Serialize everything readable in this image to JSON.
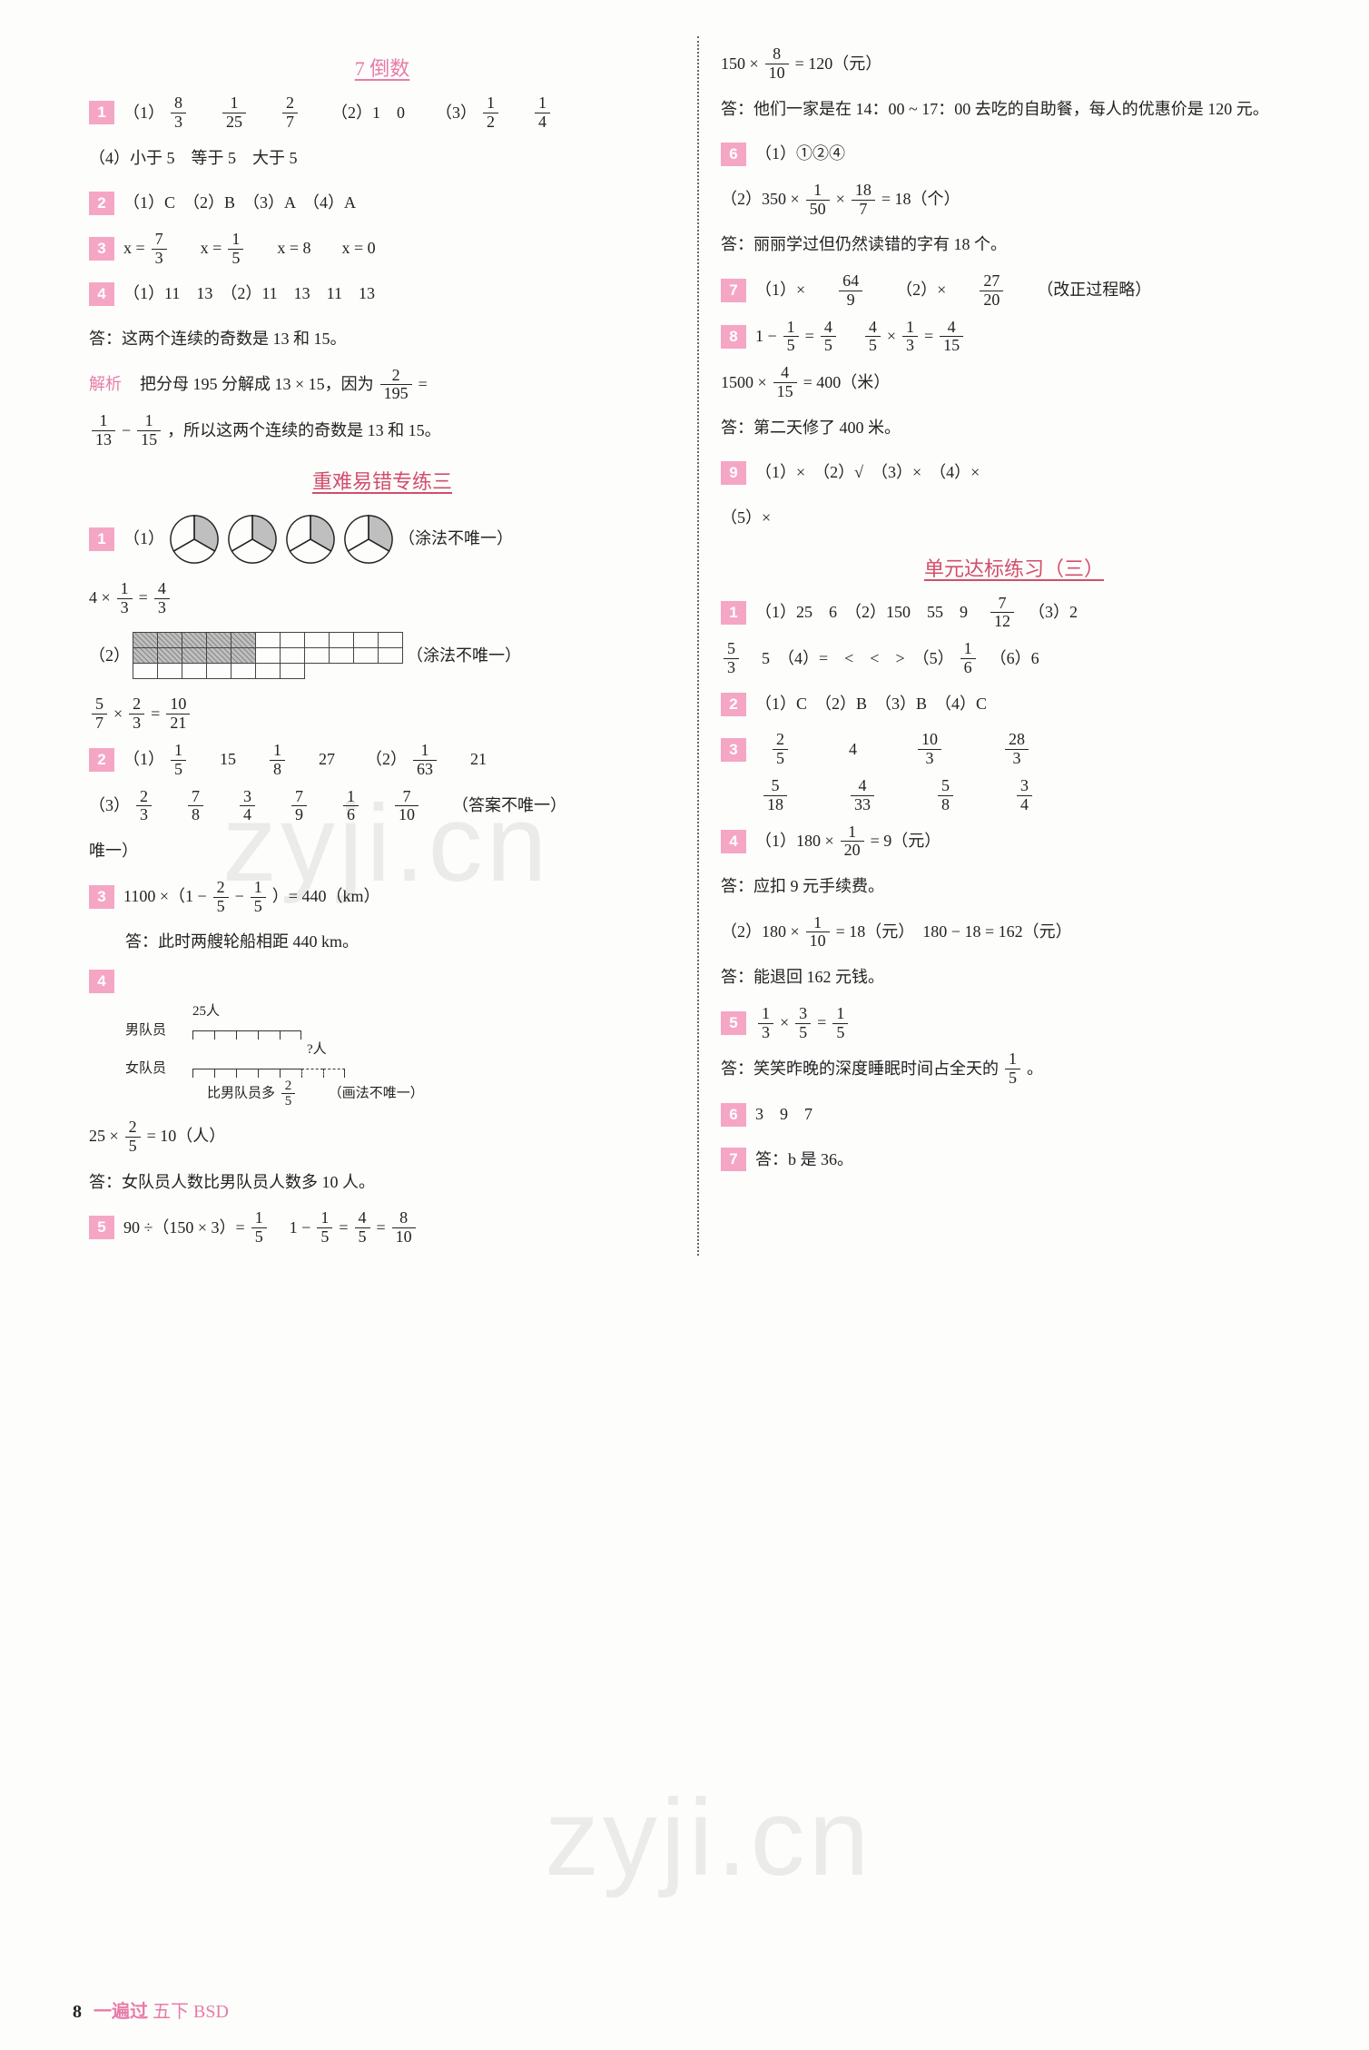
{
  "page": {
    "number": "8",
    "brand": "一遍过",
    "sub": "五下 BSD"
  },
  "watermark": "zyji.cn",
  "left": {
    "sec1_title": "7  倒数",
    "q1": {
      "p1_prefix": "（1）",
      "frac1": {
        "n": "8",
        "d": "3"
      },
      "frac2": {
        "n": "1",
        "d": "25"
      },
      "frac3": {
        "n": "2",
        "d": "7"
      },
      "p2": "（2）1　0",
      "p3_prefix": "（3）",
      "frac4": {
        "n": "1",
        "d": "2"
      },
      "frac5": {
        "n": "1",
        "d": "4"
      },
      "p4": "（4）小于 5　等于 5　大于 5"
    },
    "q2": "（1）C　（2）B　（3）A　（4）A",
    "q3": {
      "eq1_lhs": "x =",
      "f1": {
        "n": "7",
        "d": "3"
      },
      "eq2_lhs": "x =",
      "f2": {
        "n": "1",
        "d": "5"
      },
      "eq3": "x = 8",
      "eq4": "x = 0"
    },
    "q4_l1": "（1）11　13　（2）11　13　11　13",
    "q4_ans": "答：这两个连续的奇数是 13 和 15。",
    "jiexi_label": "解析",
    "jiexi_t1": "把分母 195 分解成 13 × 15，因为",
    "jiexi_f1": {
      "n": "2",
      "d": "195"
    },
    "jiexi_eq": " = ",
    "jiexi_f2": {
      "n": "1",
      "d": "13"
    },
    "jiexi_minus": " − ",
    "jiexi_f3": {
      "n": "1",
      "d": "15"
    },
    "jiexi_t2": "，所以这两个连续的奇数是 13 和 15。",
    "sec2_title": "重难易错专练三",
    "z1_note": "（涂法不唯一）",
    "z1_eq_a": "4 ×",
    "z1_f1": {
      "n": "1",
      "d": "3"
    },
    "z1_eq_mid": " = ",
    "z1_f2": {
      "n": "4",
      "d": "3"
    },
    "z1_p2_label": "（2）",
    "z1_eq2_f1": {
      "n": "5",
      "d": "7"
    },
    "z1_times": " × ",
    "z1_eq2_f2": {
      "n": "2",
      "d": "3"
    },
    "z1_eq2_mid": " = ",
    "z1_eq2_f3": {
      "n": "10",
      "d": "21"
    },
    "z2_p1_prefix": "（1）",
    "z2_f1": {
      "n": "1",
      "d": "5"
    },
    "z2_t1": "15",
    "z2_f2": {
      "n": "1",
      "d": "8"
    },
    "z2_t2": "27",
    "z2_p2_prefix": "（2）",
    "z2_f3": {
      "n": "1",
      "d": "63"
    },
    "z2_t3": "21",
    "z2_p3_prefix": "（3）",
    "z2_f4": {
      "n": "2",
      "d": "3"
    },
    "z2_f5": {
      "n": "7",
      "d": "8"
    },
    "z2_f6": {
      "n": "3",
      "d": "4"
    },
    "z2_f7": {
      "n": "7",
      "d": "9"
    },
    "z2_f8": {
      "n": "1",
      "d": "6"
    },
    "z2_f9": {
      "n": "7",
      "d": "10"
    },
    "z2_note": "（答案不唯一）",
    "z3_pre": "1100 ×（1 − ",
    "z3_f1": {
      "n": "2",
      "d": "5"
    },
    "z3_mid": " − ",
    "z3_f2": {
      "n": "1",
      "d": "5"
    },
    "z3_post": "）= 440（km）",
    "z3_ans": "答：此时两艘轮船相距 440 km。",
    "z4_top_label": "25人",
    "z4_row1": "男队员",
    "z4_row2": "女队员",
    "z4_qmark": "?人",
    "z4_bottom": "比男队员多",
    "z4_bfrac": {
      "n": "2",
      "d": "5"
    },
    "z4_note": "（画法不唯一）",
    "z4_eq_pre": "25 × ",
    "z4_eq_f": {
      "n": "2",
      "d": "5"
    },
    "z4_eq_post": " = 10（人）",
    "z4_ans": "答：女队员人数比男队员人数多 10 人。",
    "z5_pre": "90 ÷（150 × 3）= ",
    "z5_f1": {
      "n": "1",
      "d": "5"
    },
    "z5_mid": "　1 − ",
    "z5_f2": {
      "n": "1",
      "d": "5"
    },
    "z5_eq": " = ",
    "z5_f3": {
      "n": "4",
      "d": "5"
    },
    "z5_eq2": " = ",
    "z5_f4": {
      "n": "8",
      "d": "10"
    }
  },
  "right": {
    "top_eq_pre": "150 × ",
    "top_eq_f": {
      "n": "8",
      "d": "10"
    },
    "top_eq_post": " = 120（元）",
    "top_ans": "答：他们一家是在 14：00 ~ 17：00 去吃的自助餐，每人的优惠价是 120 元。",
    "q6_l1": "（1）①②④",
    "q6_l2_pre": "（2）350 × ",
    "q6_f1": {
      "n": "1",
      "d": "50"
    },
    "q6_mid": " × ",
    "q6_f2": {
      "n": "18",
      "d": "7"
    },
    "q6_l2_post": " = 18（个）",
    "q6_ans": "答：丽丽学过但仍然读错的字有 18 个。",
    "q7_p1": "（1）×",
    "q7_f1": {
      "n": "64",
      "d": "9"
    },
    "q7_p2": "（2）×",
    "q7_f2": {
      "n": "27",
      "d": "20"
    },
    "q7_note": "（改正过程略）",
    "q8_pre": "1 − ",
    "q8_f1": {
      "n": "1",
      "d": "5"
    },
    "q8_eq": " = ",
    "q8_f2": {
      "n": "4",
      "d": "5"
    },
    "q8_sp": "　",
    "q8_f3": {
      "n": "4",
      "d": "5"
    },
    "q8_times": " × ",
    "q8_f4": {
      "n": "1",
      "d": "3"
    },
    "q8_eq2": " = ",
    "q8_f5": {
      "n": "4",
      "d": "15"
    },
    "q8_l2_pre": "1500 × ",
    "q8_l2_f": {
      "n": "4",
      "d": "15"
    },
    "q8_l2_post": " = 400（米）",
    "q8_ans": "答：第二天修了 400 米。",
    "q9": "（1）×　（2）√　（3）×　（4）×",
    "q9_l2": "（5）×",
    "sec3_title": "单元达标练习（三）",
    "d1_l1_pre": "（1）25　6　（2）150　55　9　",
    "d1_f1": {
      "n": "7",
      "d": "12"
    },
    "d1_l1_post": "　（3）2",
    "d1_l2_f1": {
      "n": "5",
      "d": "3"
    },
    "d1_l2_mid": "　5　（4）=　<　<　>　（5）",
    "d1_l2_f2": {
      "n": "1",
      "d": "6"
    },
    "d1_l2_post": "　（6）6",
    "d2": "（1）C　（2）B　（3）B　（4）C",
    "d3_f1": {
      "n": "2",
      "d": "5"
    },
    "d3_t1": "4",
    "d3_f2": {
      "n": "10",
      "d": "3"
    },
    "d3_f3": {
      "n": "28",
      "d": "3"
    },
    "d3_f4": {
      "n": "5",
      "d": "18"
    },
    "d3_f5": {
      "n": "4",
      "d": "33"
    },
    "d3_f6": {
      "n": "5",
      "d": "8"
    },
    "d3_f7": {
      "n": "3",
      "d": "4"
    },
    "d4_l1_pre": "（1）180 × ",
    "d4_f1": {
      "n": "1",
      "d": "20"
    },
    "d4_l1_post": " = 9（元）",
    "d4_ans1": "答：应扣 9 元手续费。",
    "d4_l2_pre": "（2）180 × ",
    "d4_f2": {
      "n": "1",
      "d": "10"
    },
    "d4_l2_mid": " = 18（元）　180 − 18 = 162（元）",
    "d4_ans2": "答：能退回 162 元钱。",
    "d5_f1": {
      "n": "1",
      "d": "3"
    },
    "d5_times": " × ",
    "d5_f2": {
      "n": "3",
      "d": "5"
    },
    "d5_eq": " = ",
    "d5_f3": {
      "n": "1",
      "d": "5"
    },
    "d5_ans_pre": "答：笑笑昨晚的深度睡眠时间占全天的",
    "d5_ans_f": {
      "n": "1",
      "d": "5"
    },
    "d5_ans_post": "。",
    "d6": "3　9　7",
    "d7": "答：b 是 36。"
  },
  "pie_colors": {
    "fill": "#bfbfbf",
    "stroke": "#222"
  },
  "grid": {
    "rows": 3,
    "cols": 11,
    "shaded_rows": 2,
    "shaded_cols": 5
  }
}
